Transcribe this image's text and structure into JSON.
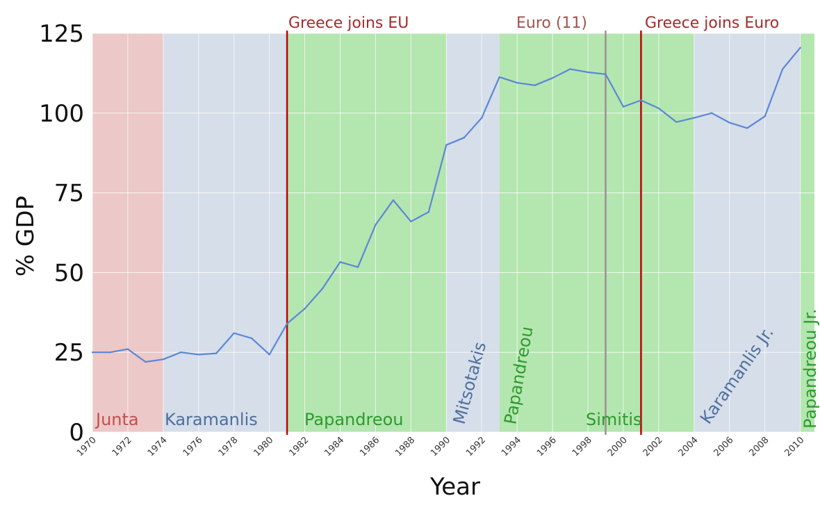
{
  "chart_data": {
    "type": "line",
    "xlabel": "Year",
    "ylabel": "% GDP",
    "xlim": [
      1970,
      2010.8
    ],
    "ylim": [
      0,
      125
    ],
    "yticks": [
      0,
      25,
      50,
      75,
      100,
      125
    ],
    "xticks": [
      1970,
      1972,
      1974,
      1976,
      1978,
      1980,
      1982,
      1984,
      1986,
      1988,
      1990,
      1992,
      1994,
      1996,
      1998,
      2000,
      2002,
      2004,
      2006,
      2008,
      2010
    ],
    "xtick_labels": [
      "1970",
      "1972",
      "1974",
      "1976",
      "1978",
      "1980",
      "1982",
      "1984",
      "1986",
      "1988",
      "1990",
      "1992",
      "1994",
      "1996",
      "1998",
      "2000",
      "2002",
      "2004",
      "2006",
      "2008",
      "2010"
    ],
    "grid": true,
    "series": [
      {
        "color": "#5b86d6",
        "x": [
          1970,
          1971,
          1972,
          1973,
          1974,
          1975,
          1976,
          1977,
          1978,
          1979,
          1980,
          1981,
          1982,
          1983,
          1984,
          1985,
          1986,
          1987,
          1988,
          1989,
          1990,
          1991,
          1992,
          1993,
          1994,
          1995,
          1996,
          1997,
          1998,
          1999,
          2000,
          2001,
          2002,
          2003,
          2004,
          2005,
          2006,
          2007,
          2008,
          2009,
          2010
        ],
        "y": [
          25.0,
          25.0,
          26.0,
          22.0,
          22.8,
          25.0,
          24.3,
          24.7,
          31.0,
          29.4,
          24.3,
          34.0,
          38.7,
          45.0,
          53.3,
          51.7,
          65.0,
          72.7,
          66.0,
          69.0,
          90.0,
          92.3,
          98.5,
          111.3,
          109.5,
          108.7,
          111.0,
          113.8,
          112.8,
          112.2,
          102.0,
          104.0,
          101.5,
          97.2,
          98.5,
          100.0,
          97.0,
          95.3,
          99.0,
          113.8,
          120.5
        ]
      }
    ],
    "periods": [
      {
        "label": "Junta",
        "start": 1970,
        "end": 1974,
        "fill": "#ecc8c8",
        "label_color": "#c0504d"
      },
      {
        "label": "Karamanlis",
        "start": 1974,
        "end": 1981,
        "fill": "#d5dee9",
        "label_color": "#4f6f9e"
      },
      {
        "label": "Papandreou",
        "start": 1981,
        "end": 1990,
        "fill": "#b4e6b0",
        "label_color": "#2e9a2e"
      },
      {
        "label": "Mitsotakis",
        "start": 1990,
        "end": 1993,
        "fill": "#d5dee9",
        "label_color": "#4f6f9e"
      },
      {
        "label": "Papandreou",
        "start": 1993,
        "end": 1996,
        "fill": "#b4e6b0",
        "label_color": "#2e9a2e"
      },
      {
        "label": "Simitis",
        "start": 1996,
        "end": 2004,
        "fill": "#b4e6b0",
        "label_color": "#2e9a2e"
      },
      {
        "label": "Karamanlis Jr.",
        "start": 2004,
        "end": 2010,
        "fill": "#d5dee9",
        "label_color": "#4f6f9e"
      },
      {
        "label": "Papandreou Jr.",
        "start": 2010,
        "end": 2010.8,
        "fill": "#b4e6b0",
        "label_color": "#2e9a2e"
      }
    ],
    "events": [
      {
        "label": "Greece joins EU",
        "year": 1981,
        "color": "#c00000",
        "text_color": "#a52a2a"
      },
      {
        "label": "Euro (11)",
        "year": 1999,
        "color": "#9e8f8f",
        "text_color": "#a0524d"
      },
      {
        "label": "Greece joins Euro",
        "year": 2001,
        "color": "#c00000",
        "text_color": "#a52a2a"
      }
    ]
  }
}
